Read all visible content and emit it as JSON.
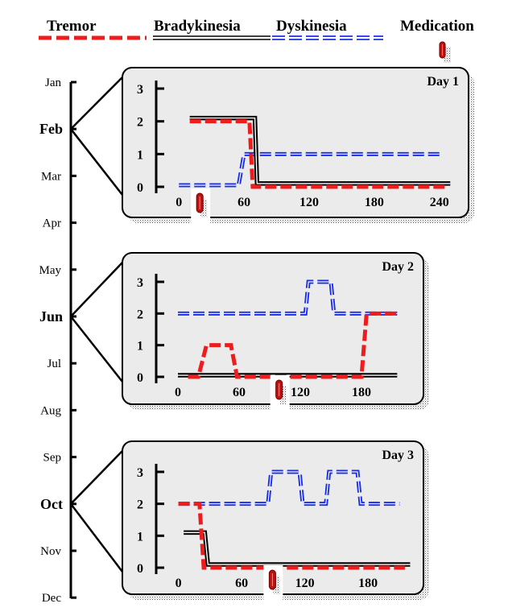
{
  "colors": {
    "tremor": "#ee1c1c",
    "bradykinesia": "#000000",
    "dyskinesia": "#1c2fe6",
    "medication": "#c40f0f",
    "panel_fill": "#ebebeb"
  },
  "legend": {
    "tremor": "Tremor",
    "bradykinesia": "Bradykinesia",
    "dyskinesia": "Dyskinesia",
    "medication": "Medication"
  },
  "timeline": {
    "months": [
      "Jan",
      "Feb",
      "Mar",
      "Apr",
      "May",
      "Jun",
      "Jul",
      "Aug",
      "Sep",
      "Oct",
      "Nov",
      "Dec"
    ],
    "highlighted": [
      "Feb",
      "Jun",
      "Oct"
    ]
  },
  "chart_data": [
    {
      "type": "line",
      "title": "Day 1",
      "month": "Feb",
      "xlim": [
        -15,
        255
      ],
      "ylim": [
        0,
        3
      ],
      "xticks": [
        "0",
        "60",
        "120",
        "180",
        "240"
      ],
      "yticks": [
        "0",
        "1",
        "2",
        "3"
      ],
      "medication_x": [
        20
      ],
      "series": [
        {
          "name": "Tremor",
          "points": [
            [
              10,
              2
            ],
            [
              65,
              2
            ],
            [
              68,
              0
            ],
            [
              245,
              0
            ]
          ]
        },
        {
          "name": "Bradykinesia",
          "points": [
            [
              10,
              2.1
            ],
            [
              70,
              2.1
            ],
            [
              72,
              0.1
            ],
            [
              250,
              0.1
            ]
          ]
        },
        {
          "name": "Dyskinesia",
          "points": [
            [
              0,
              0.05
            ],
            [
              55,
              0.05
            ],
            [
              60,
              1
            ],
            [
              240,
              1
            ]
          ]
        }
      ]
    },
    {
      "type": "line",
      "title": "Day 2",
      "month": "Jun",
      "xlim": [
        -15,
        225
      ],
      "ylim": [
        0,
        3
      ],
      "xticks": [
        "0",
        "60",
        "120",
        "180"
      ],
      "yticks": [
        "0",
        "1",
        "2",
        "3"
      ],
      "medication_x": [
        100
      ],
      "series": [
        {
          "name": "Tremor",
          "points": [
            [
              10,
              0
            ],
            [
              20,
              0
            ],
            [
              28,
              1
            ],
            [
              52,
              1
            ],
            [
              58,
              0
            ],
            [
              180,
              0
            ],
            [
              185,
              2
            ],
            [
              215,
              2
            ]
          ]
        },
        {
          "name": "Bradykinesia",
          "points": [
            [
              0,
              0.05
            ],
            [
              215,
              0.05
            ]
          ]
        },
        {
          "name": "Dyskinesia",
          "points": [
            [
              0,
              2
            ],
            [
              125,
              2
            ],
            [
              128,
              3
            ],
            [
              150,
              3
            ],
            [
              153,
              2
            ],
            [
              215,
              2
            ]
          ]
        }
      ]
    },
    {
      "type": "line",
      "title": "Day 3",
      "month": "Oct",
      "xlim": [
        -15,
        225
      ],
      "ylim": [
        0,
        3
      ],
      "xticks": [
        "0",
        "60",
        "120",
        "180"
      ],
      "yticks": [
        "0",
        "1",
        "2",
        "3"
      ],
      "medication_x": [
        90
      ],
      "series": [
        {
          "name": "Tremor",
          "points": [
            [
              0,
              2
            ],
            [
              20,
              2
            ],
            [
              24,
              0
            ],
            [
              215,
              0
            ]
          ]
        },
        {
          "name": "Bradykinesia",
          "points": [
            [
              5,
              1.1
            ],
            [
              25,
              1.1
            ],
            [
              28,
              0.1
            ],
            [
              220,
              0.1
            ]
          ]
        },
        {
          "name": "Dyskinesia",
          "points": [
            [
              0,
              2
            ],
            [
              85,
              2
            ],
            [
              88,
              3
            ],
            [
              115,
              3
            ],
            [
              118,
              2
            ],
            [
              140,
              2
            ],
            [
              143,
              3
            ],
            [
              170,
              3
            ],
            [
              173,
              2
            ],
            [
              210,
              2
            ]
          ]
        }
      ]
    }
  ]
}
